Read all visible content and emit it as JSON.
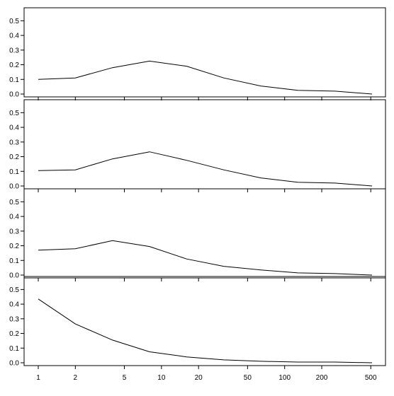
{
  "chart_data": {
    "type": "line",
    "x_scale": "log",
    "grid": false,
    "x_ticks": [
      1,
      2,
      5,
      10,
      20,
      50,
      100,
      200,
      500
    ],
    "y_ticks": [
      0.0,
      0.1,
      0.2,
      0.3,
      0.4,
      0.5
    ],
    "ylim": [
      0,
      0.55
    ],
    "xlim": [
      1,
      512
    ],
    "panels": [
      {
        "x": [
          1,
          2,
          4,
          8,
          16,
          32,
          64,
          128,
          256,
          512
        ],
        "y": [
          0.1,
          0.11,
          0.18,
          0.225,
          0.19,
          0.11,
          0.055,
          0.025,
          0.02,
          0.0
        ]
      },
      {
        "x": [
          1,
          2,
          4,
          8,
          16,
          32,
          64,
          128,
          256,
          512
        ],
        "y": [
          0.105,
          0.11,
          0.185,
          0.233,
          0.175,
          0.11,
          0.055,
          0.025,
          0.02,
          0.0
        ]
      },
      {
        "x": [
          1,
          2,
          4,
          8,
          16,
          32,
          64,
          128,
          256,
          512
        ],
        "y": [
          0.17,
          0.18,
          0.235,
          0.195,
          0.11,
          0.06,
          0.035,
          0.015,
          0.01,
          0.0
        ]
      },
      {
        "x": [
          1,
          2,
          4,
          8,
          16,
          32,
          64,
          128,
          256,
          512
        ],
        "y": [
          0.435,
          0.265,
          0.155,
          0.075,
          0.04,
          0.02,
          0.01,
          0.005,
          0.005,
          0.0
        ]
      }
    ]
  }
}
